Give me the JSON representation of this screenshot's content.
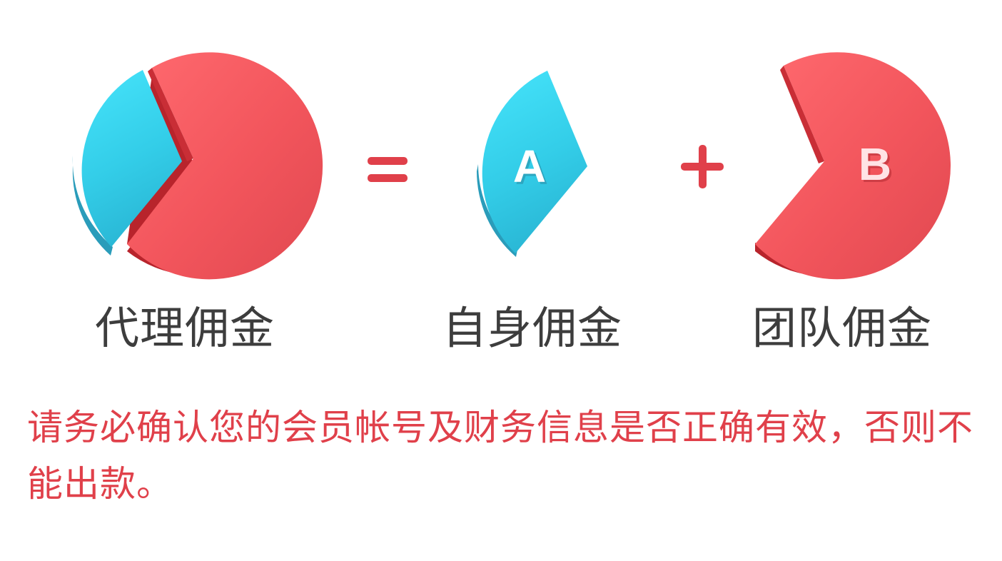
{
  "equation": {
    "operator_equals": "=",
    "operator_plus": "+",
    "slice_a_letter": "A",
    "slice_b_letter": "B"
  },
  "labels": {
    "total": "代理佣金",
    "own": "自身佣金",
    "team": "团队佣金"
  },
  "notice": "请务必确认您的会员帐号及财务信息是否正确有效，否则不能出款。",
  "colors": {
    "red": "#f0515a",
    "red_dark": "#b8242c",
    "cyan": "#38d0ea",
    "cyan_dark": "#2a9cba",
    "operator": "#e0404a",
    "label_text": "#3d3d3d",
    "notice_text": "#e0404a"
  },
  "icons": [
    "pie-chart-icon",
    "pie-slice-a-icon",
    "pie-slice-b-icon"
  ]
}
